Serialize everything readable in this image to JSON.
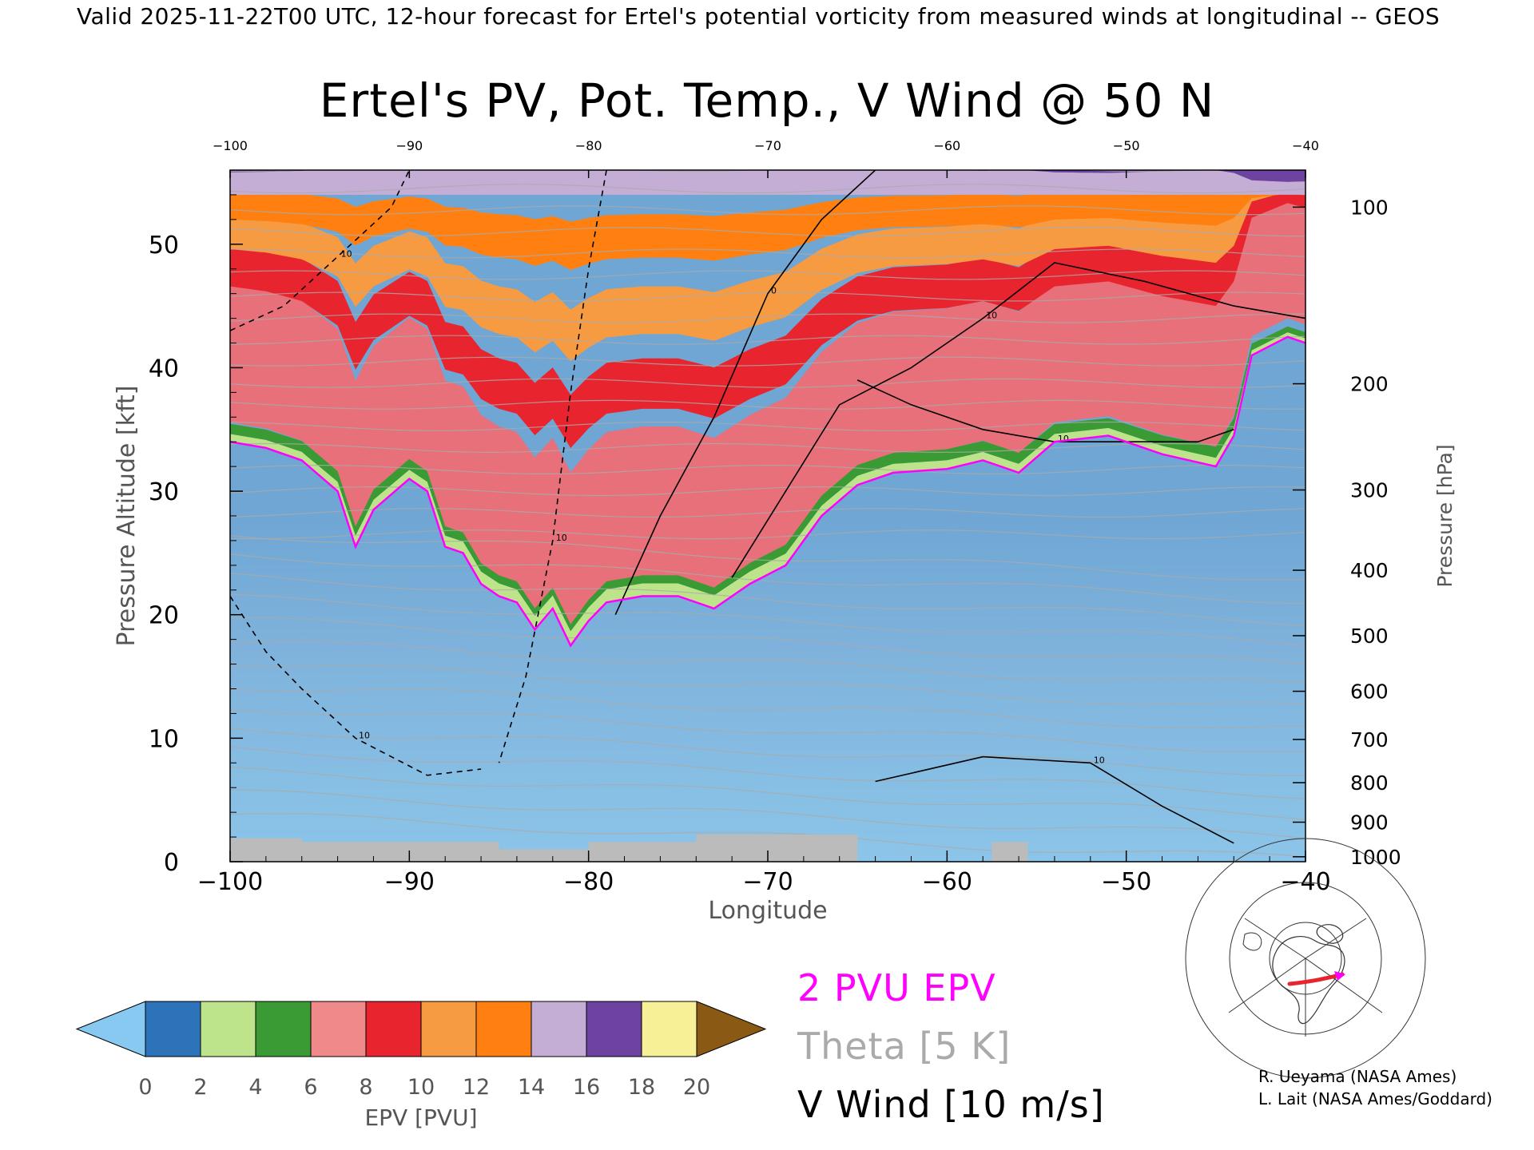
{
  "header": {
    "text": "Valid 2025-11-22T00 UTC, 12-hour forecast for Ertel's potential vorticity from measured winds at longitudinal -- GEOS"
  },
  "chart_data": {
    "type": "heatmap",
    "title": "Ertel's PV, Pot. Temp., V Wind @ 50 N",
    "xlabel": "Longitude",
    "ylabel": "Pressure Altitude [kft]",
    "y2label": "Pressure [hPa]",
    "xlim": [
      -100,
      -40
    ],
    "ylim": [
      0,
      56
    ],
    "x_ticks": [
      "−100",
      "−90",
      "−80",
      "−70",
      "−60",
      "−50",
      "−40"
    ],
    "x_top_ticks": [
      "−100",
      "−90",
      "−80",
      "−70",
      "−60",
      "−50",
      "−40"
    ],
    "y_ticks": [
      "0",
      "10",
      "20",
      "30",
      "40",
      "50"
    ],
    "y_tick_values": [
      0,
      10,
      20,
      30,
      40,
      50
    ],
    "pressure_ticks": [
      {
        "label": "100",
        "kft": 53.0
      },
      {
        "label": "200",
        "kft": 38.7
      },
      {
        "label": "300",
        "kft": 30.1
      },
      {
        "label": "400",
        "kft": 23.6
      },
      {
        "label": "500",
        "kft": 18.3
      },
      {
        "label": "600",
        "kft": 13.8
      },
      {
        "label": "700",
        "kft": 9.9
      },
      {
        "label": "800",
        "kft": 6.4
      },
      {
        "label": "900",
        "kft": 3.2
      },
      {
        "label": "1000",
        "kft": 0.4
      }
    ],
    "tropopause_2pvu_kft": [
      {
        "lon": -100,
        "kft": 34.0
      },
      {
        "lon": -98,
        "kft": 33.5
      },
      {
        "lon": -96,
        "kft": 32.5
      },
      {
        "lon": -94,
        "kft": 30.0
      },
      {
        "lon": -93,
        "kft": 25.5
      },
      {
        "lon": -92,
        "kft": 28.5
      },
      {
        "lon": -90,
        "kft": 31.0
      },
      {
        "lon": -89,
        "kft": 30.0
      },
      {
        "lon": -88,
        "kft": 25.5
      },
      {
        "lon": -87,
        "kft": 25.0
      },
      {
        "lon": -86,
        "kft": 22.5
      },
      {
        "lon": -85,
        "kft": 21.5
      },
      {
        "lon": -84,
        "kft": 21.0
      },
      {
        "lon": -83,
        "kft": 18.8
      },
      {
        "lon": -82,
        "kft": 20.5
      },
      {
        "lon": -81,
        "kft": 17.5
      },
      {
        "lon": -80,
        "kft": 19.5
      },
      {
        "lon": -79,
        "kft": 21.0
      },
      {
        "lon": -77,
        "kft": 21.5
      },
      {
        "lon": -75,
        "kft": 21.5
      },
      {
        "lon": -73,
        "kft": 20.5
      },
      {
        "lon": -71,
        "kft": 22.5
      },
      {
        "lon": -69,
        "kft": 24.0
      },
      {
        "lon": -68,
        "kft": 26.0
      },
      {
        "lon": -67,
        "kft": 28.0
      },
      {
        "lon": -65,
        "kft": 30.5
      },
      {
        "lon": -63,
        "kft": 31.5
      },
      {
        "lon": -60,
        "kft": 31.8
      },
      {
        "lon": -58,
        "kft": 32.5
      },
      {
        "lon": -56,
        "kft": 31.5
      },
      {
        "lon": -54,
        "kft": 34.0
      },
      {
        "lon": -51,
        "kft": 34.5
      },
      {
        "lon": -48,
        "kft": 33.0
      },
      {
        "lon": -45,
        "kft": 32.0
      },
      {
        "lon": -44,
        "kft": 34.5
      },
      {
        "lon": -43,
        "kft": 41.0
      },
      {
        "lon": -41,
        "kft": 42.5
      },
      {
        "lon": -40,
        "kft": 42.0
      }
    ],
    "wind_contours": [
      {
        "label": "0",
        "style": "solid",
        "points": [
          [
            -78.5,
            20
          ],
          [
            -76,
            28
          ],
          [
            -73,
            36
          ],
          [
            -70,
            46
          ],
          [
            -67,
            52
          ],
          [
            -64,
            56
          ]
        ]
      },
      {
        "label": "10",
        "style": "solid",
        "points": [
          [
            -72,
            23
          ],
          [
            -69,
            30
          ],
          [
            -66,
            37
          ],
          [
            -62,
            40
          ],
          [
            -58,
            44
          ],
          [
            -54,
            48.5
          ],
          [
            -49,
            47
          ],
          [
            -44,
            45
          ],
          [
            -40,
            44
          ]
        ]
      },
      {
        "label": "10",
        "style": "solid",
        "points": [
          [
            -65,
            39
          ],
          [
            -62,
            37
          ],
          [
            -58,
            35
          ],
          [
            -54,
            34
          ],
          [
            -50,
            34
          ],
          [
            -46,
            34
          ],
          [
            -44,
            35
          ]
        ]
      },
      {
        "label": "10",
        "style": "solid",
        "points": [
          [
            -64,
            6.5
          ],
          [
            -58,
            8.5
          ],
          [
            -52,
            8
          ],
          [
            -48,
            4.5
          ],
          [
            -44,
            1.5
          ]
        ]
      },
      {
        "label": "10",
        "style": "dashed",
        "points": [
          [
            -100,
            43
          ],
          [
            -97,
            45
          ],
          [
            -94,
            49
          ],
          [
            -91,
            53
          ],
          [
            -90,
            56
          ]
        ]
      },
      {
        "label": "10",
        "style": "dashed",
        "points": [
          [
            -79,
            56
          ],
          [
            -80,
            48
          ],
          [
            -81,
            38
          ],
          [
            -82,
            26
          ],
          [
            -83.5,
            15
          ],
          [
            -85,
            8
          ]
        ]
      },
      {
        "label": "10",
        "style": "dashed",
        "points": [
          [
            -100,
            21.5
          ],
          [
            -98,
            17
          ],
          [
            -96,
            14
          ],
          [
            -93,
            10
          ],
          [
            -89,
            7
          ],
          [
            -86,
            7.5
          ]
        ]
      }
    ],
    "terrain_kft": [
      {
        "lon": -100,
        "kft": 1.9
      },
      {
        "lon": -98,
        "kft": 1.9
      },
      {
        "lon": -96,
        "kft": 1.6
      },
      {
        "lon": -90,
        "kft": 1.6
      },
      {
        "lon": -86,
        "kft": 1.6
      },
      {
        "lon": -85,
        "kft": 1.0
      },
      {
        "lon": -82,
        "kft": 1.0
      },
      {
        "lon": -80,
        "kft": 1.6
      },
      {
        "lon": -75,
        "kft": 1.6
      },
      {
        "lon": -74,
        "kft": 2.2
      },
      {
        "lon": -66,
        "kft": 2.2
      },
      {
        "lon": -65,
        "kft": 0.0
      },
      {
        "lon": -58,
        "kft": 0.0
      },
      {
        "lon": -57.5,
        "kft": 1.6
      },
      {
        "lon": -56,
        "kft": 1.6
      },
      {
        "lon": -55.5,
        "kft": 0.0
      },
      {
        "lon": -40,
        "kft": 0.0
      }
    ]
  },
  "colorbar": {
    "label": "EPV [PVU]",
    "ticks": [
      "0",
      "2",
      "4",
      "6",
      "8",
      "10",
      "12",
      "14",
      "16",
      "18",
      "20"
    ],
    "tick_values": [
      0,
      2,
      4,
      6,
      8,
      10,
      12,
      14,
      16,
      18,
      20
    ],
    "colors": [
      "#2c73b9",
      "#bde48a",
      "#3a9a33",
      "#f08a8a",
      "#e8252e",
      "#f79b43",
      "#ff8010",
      "#c5aed6",
      "#6e42a0",
      "#f7f096"
    ],
    "under_color": "#88c9f1",
    "over_color": "#8a5a14"
  },
  "legend": {
    "pv_label": "2 PVU EPV",
    "theta_label": "Theta [5 K]",
    "wind_label": "V Wind [10 m/s]",
    "pv_color": "#ff00ff",
    "theta_color": "#aaaaaa",
    "wind_color": "#000000"
  },
  "credits": {
    "line1": "R. Ueyama (NASA Ames)",
    "line2": "L. Lait (NASA Ames/Goddard)"
  }
}
